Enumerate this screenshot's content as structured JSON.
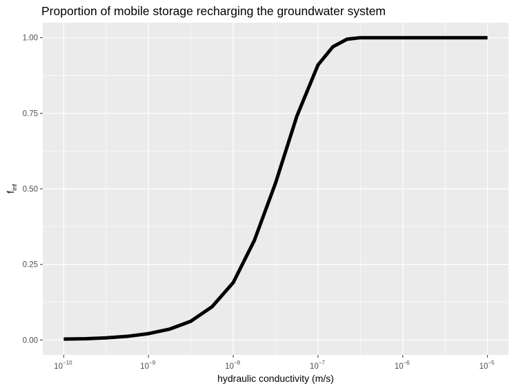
{
  "chart_data": {
    "type": "line",
    "title": "Proportion of mobile storage recharging the groundwater system",
    "xlabel": "hydraulic conductivity (m/s)",
    "ylabel": {
      "base": "f",
      "subscript": "inf"
    },
    "x_scale": "log10",
    "xlim": [
      1e-10,
      1e-05
    ],
    "ylim": [
      0,
      1
    ],
    "x_ticks": [
      {
        "value": 1e-10,
        "base": "10",
        "exponent": "−10"
      },
      {
        "value": 1e-09,
        "base": "10",
        "exponent": "−9"
      },
      {
        "value": 1e-08,
        "base": "10",
        "exponent": "−8"
      },
      {
        "value": 1e-07,
        "base": "10",
        "exponent": "−7"
      },
      {
        "value": 1e-06,
        "base": "10",
        "exponent": "−6"
      },
      {
        "value": 1e-05,
        "base": "10",
        "exponent": "−5"
      }
    ],
    "y_ticks": [
      {
        "value": 0.0,
        "label": "0.00"
      },
      {
        "value": 0.25,
        "label": "0.25"
      },
      {
        "value": 0.5,
        "label": "0.50"
      },
      {
        "value": 0.75,
        "label": "0.75"
      },
      {
        "value": 1.0,
        "label": "1.00"
      }
    ],
    "grid": true,
    "background": "#ebebeb",
    "grid_color": "#ffffff",
    "series_color": "#000000",
    "series": [
      {
        "x": [
          1e-10,
          1.778e-10,
          3.162e-10,
          5.623e-10,
          1e-09,
          1.778e-09,
          3.162e-09,
          5.623e-09,
          1e-08,
          1.778e-08,
          3.162e-08,
          5.623e-08,
          1e-07,
          1.5e-07,
          2.2e-07,
          3.162e-07,
          5.623e-07,
          1e-06,
          1e-05
        ],
        "y": [
          0.003,
          0.004,
          0.007,
          0.012,
          0.021,
          0.036,
          0.062,
          0.11,
          0.19,
          0.33,
          0.52,
          0.74,
          0.91,
          0.97,
          0.995,
          1.0,
          1.0,
          1.0,
          1.0
        ]
      }
    ]
  }
}
